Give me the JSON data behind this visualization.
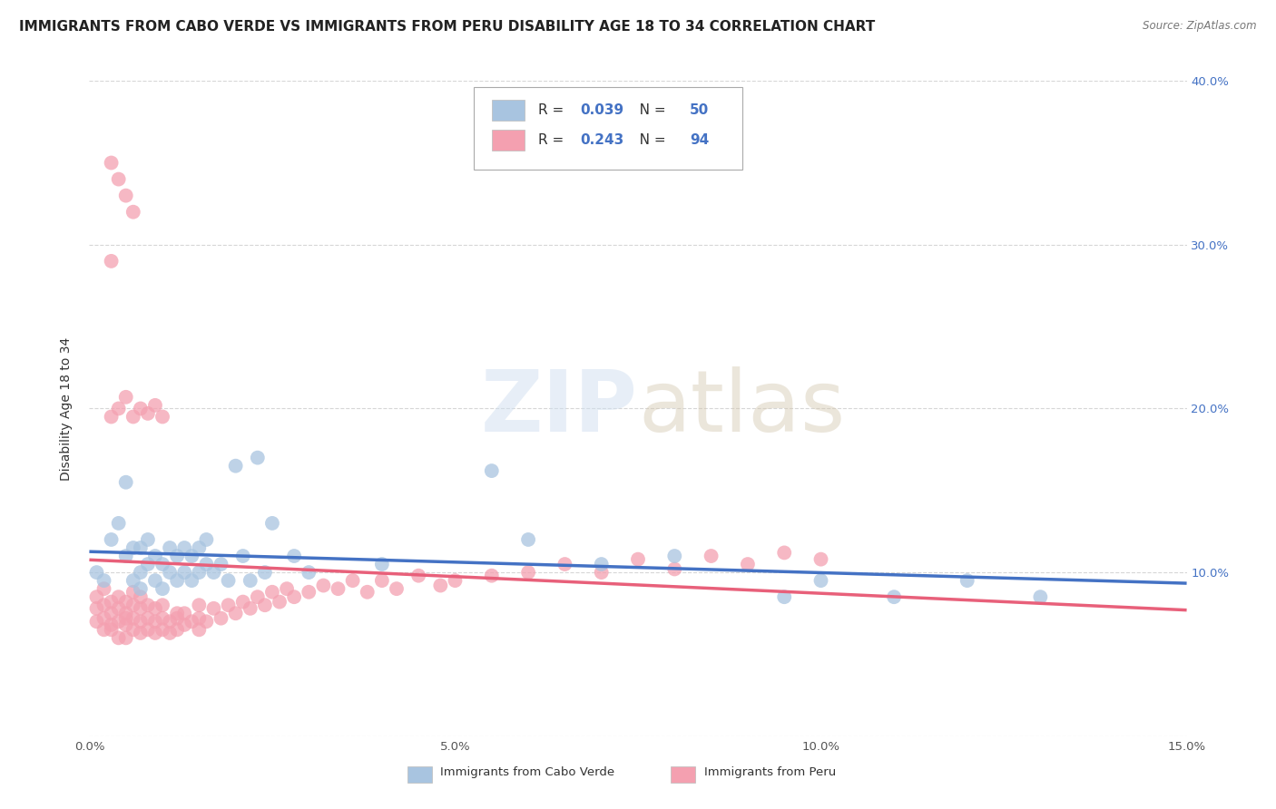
{
  "title": "IMMIGRANTS FROM CABO VERDE VS IMMIGRANTS FROM PERU DISABILITY AGE 18 TO 34 CORRELATION CHART",
  "source": "Source: ZipAtlas.com",
  "ylabel": "Disability Age 18 to 34",
  "xlim": [
    0.0,
    0.15
  ],
  "ylim": [
    0.0,
    0.4
  ],
  "xticks": [
    0.0,
    0.05,
    0.1,
    0.15
  ],
  "xticklabels": [
    "0.0%",
    "5.0%",
    "10.0%",
    "15.0%"
  ],
  "yticks": [
    0.0,
    0.1,
    0.2,
    0.3,
    0.4
  ],
  "yticklabels": [
    "",
    "10.0%",
    "20.0%",
    "30.0%",
    "40.0%"
  ],
  "cabo_verde_color": "#a8c4e0",
  "peru_color": "#f4a0b0",
  "cabo_verde_line_color": "#4472c4",
  "peru_line_color": "#e8607a",
  "cabo_verde_R": 0.039,
  "cabo_verde_N": 50,
  "peru_R": 0.243,
  "peru_N": 94,
  "cabo_verde_scatter_x": [
    0.001,
    0.002,
    0.003,
    0.004,
    0.005,
    0.005,
    0.006,
    0.006,
    0.007,
    0.007,
    0.007,
    0.008,
    0.008,
    0.009,
    0.009,
    0.01,
    0.01,
    0.011,
    0.011,
    0.012,
    0.012,
    0.013,
    0.013,
    0.014,
    0.014,
    0.015,
    0.015,
    0.016,
    0.016,
    0.017,
    0.018,
    0.019,
    0.02,
    0.021,
    0.022,
    0.023,
    0.024,
    0.025,
    0.028,
    0.03,
    0.04,
    0.055,
    0.06,
    0.07,
    0.08,
    0.095,
    0.1,
    0.11,
    0.12,
    0.13
  ],
  "cabo_verde_scatter_y": [
    0.1,
    0.095,
    0.12,
    0.13,
    0.155,
    0.11,
    0.095,
    0.115,
    0.09,
    0.1,
    0.115,
    0.105,
    0.12,
    0.095,
    0.11,
    0.09,
    0.105,
    0.1,
    0.115,
    0.095,
    0.11,
    0.1,
    0.115,
    0.095,
    0.11,
    0.1,
    0.115,
    0.105,
    0.12,
    0.1,
    0.105,
    0.095,
    0.165,
    0.11,
    0.095,
    0.17,
    0.1,
    0.13,
    0.11,
    0.1,
    0.105,
    0.162,
    0.12,
    0.105,
    0.11,
    0.085,
    0.095,
    0.085,
    0.095,
    0.085
  ],
  "peru_scatter_x": [
    0.001,
    0.001,
    0.001,
    0.002,
    0.002,
    0.002,
    0.002,
    0.003,
    0.003,
    0.003,
    0.003,
    0.003,
    0.004,
    0.004,
    0.004,
    0.004,
    0.005,
    0.005,
    0.005,
    0.005,
    0.005,
    0.006,
    0.006,
    0.006,
    0.006,
    0.007,
    0.007,
    0.007,
    0.007,
    0.008,
    0.008,
    0.008,
    0.009,
    0.009,
    0.009,
    0.01,
    0.01,
    0.01,
    0.011,
    0.011,
    0.012,
    0.012,
    0.013,
    0.013,
    0.014,
    0.015,
    0.015,
    0.016,
    0.017,
    0.018,
    0.019,
    0.02,
    0.021,
    0.022,
    0.023,
    0.024,
    0.025,
    0.026,
    0.027,
    0.028,
    0.03,
    0.032,
    0.034,
    0.036,
    0.038,
    0.04,
    0.042,
    0.045,
    0.048,
    0.05,
    0.055,
    0.06,
    0.065,
    0.07,
    0.075,
    0.08,
    0.085,
    0.09,
    0.095,
    0.1,
    0.003,
    0.004,
    0.005,
    0.006,
    0.007,
    0.008,
    0.009,
    0.01,
    0.012,
    0.015,
    0.003,
    0.004,
    0.005,
    0.006
  ],
  "peru_scatter_y": [
    0.07,
    0.078,
    0.085,
    0.072,
    0.08,
    0.065,
    0.09,
    0.068,
    0.075,
    0.082,
    0.29,
    0.065,
    0.07,
    0.078,
    0.085,
    0.06,
    0.068,
    0.075,
    0.082,
    0.06,
    0.072,
    0.065,
    0.072,
    0.08,
    0.088,
    0.063,
    0.07,
    0.078,
    0.085,
    0.065,
    0.072,
    0.08,
    0.063,
    0.07,
    0.078,
    0.065,
    0.072,
    0.08,
    0.063,
    0.07,
    0.065,
    0.072,
    0.068,
    0.075,
    0.07,
    0.065,
    0.072,
    0.07,
    0.078,
    0.072,
    0.08,
    0.075,
    0.082,
    0.078,
    0.085,
    0.08,
    0.088,
    0.082,
    0.09,
    0.085,
    0.088,
    0.092,
    0.09,
    0.095,
    0.088,
    0.095,
    0.09,
    0.098,
    0.092,
    0.095,
    0.098,
    0.1,
    0.105,
    0.1,
    0.108,
    0.102,
    0.11,
    0.105,
    0.112,
    0.108,
    0.195,
    0.2,
    0.207,
    0.195,
    0.2,
    0.197,
    0.202,
    0.195,
    0.075,
    0.08,
    0.35,
    0.34,
    0.33,
    0.32
  ],
  "background_color": "#ffffff",
  "grid_color": "#cccccc",
  "legend_label1": "Immigrants from Cabo Verde",
  "legend_label2": "Immigrants from Peru",
  "title_fontsize": 11,
  "axis_label_fontsize": 10,
  "tick_fontsize": 9.5,
  "legend_fontsize": 11
}
